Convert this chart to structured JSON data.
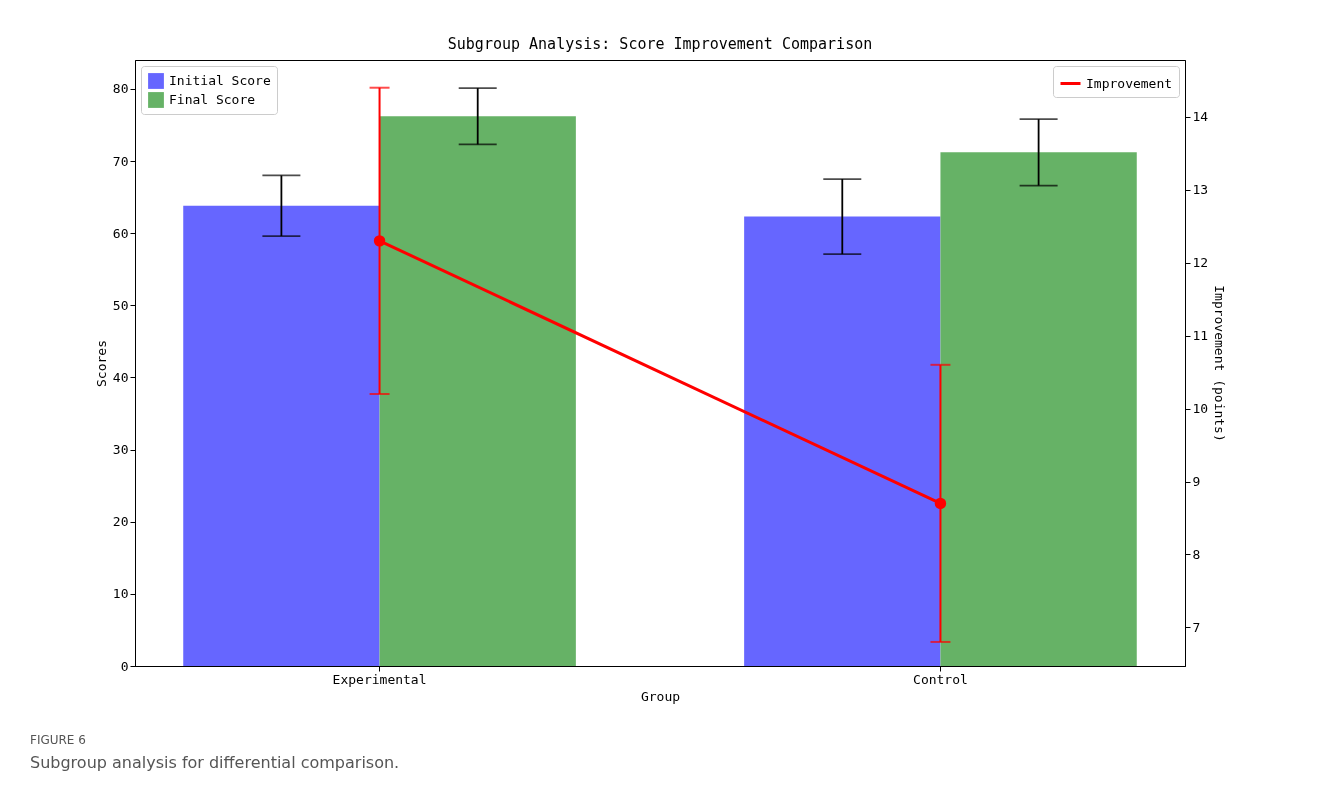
{
  "chart_data": {
    "type": "bar",
    "title": "Subgroup Analysis: Score Improvement Comparison",
    "xlabel": "Group",
    "ylabel": "Scores",
    "y2label": "Improvement (points)",
    "categories": [
      "Experimental",
      "Control"
    ],
    "series": [
      {
        "name": "Initial Score",
        "color": "#6666ff",
        "values": [
          63.8,
          62.3
        ],
        "errors": [
          4.2,
          5.2
        ]
      },
      {
        "name": "Final Score",
        "color": "#66b266",
        "values": [
          76.2,
          71.2
        ],
        "errors": [
          3.9,
          4.6
        ]
      },
      {
        "name": "Improvement",
        "type": "line",
        "axis": "y2",
        "color": "#ff0000",
        "values": [
          12.3,
          8.7
        ],
        "errors": [
          2.1,
          1.9
        ]
      }
    ],
    "ylim": [
      0,
      84
    ],
    "yticks": [
      0,
      10,
      20,
      30,
      40,
      50,
      60,
      70,
      80
    ],
    "y2lim": [
      6.47,
      14.78
    ],
    "y2ticks": [
      7,
      8,
      9,
      10,
      11,
      12,
      13,
      14
    ],
    "legend": "top left",
    "marker": "circle",
    "annotations": [
      "FIGURE 6",
      "Subgroup analysis for differential comparison."
    ]
  }
}
